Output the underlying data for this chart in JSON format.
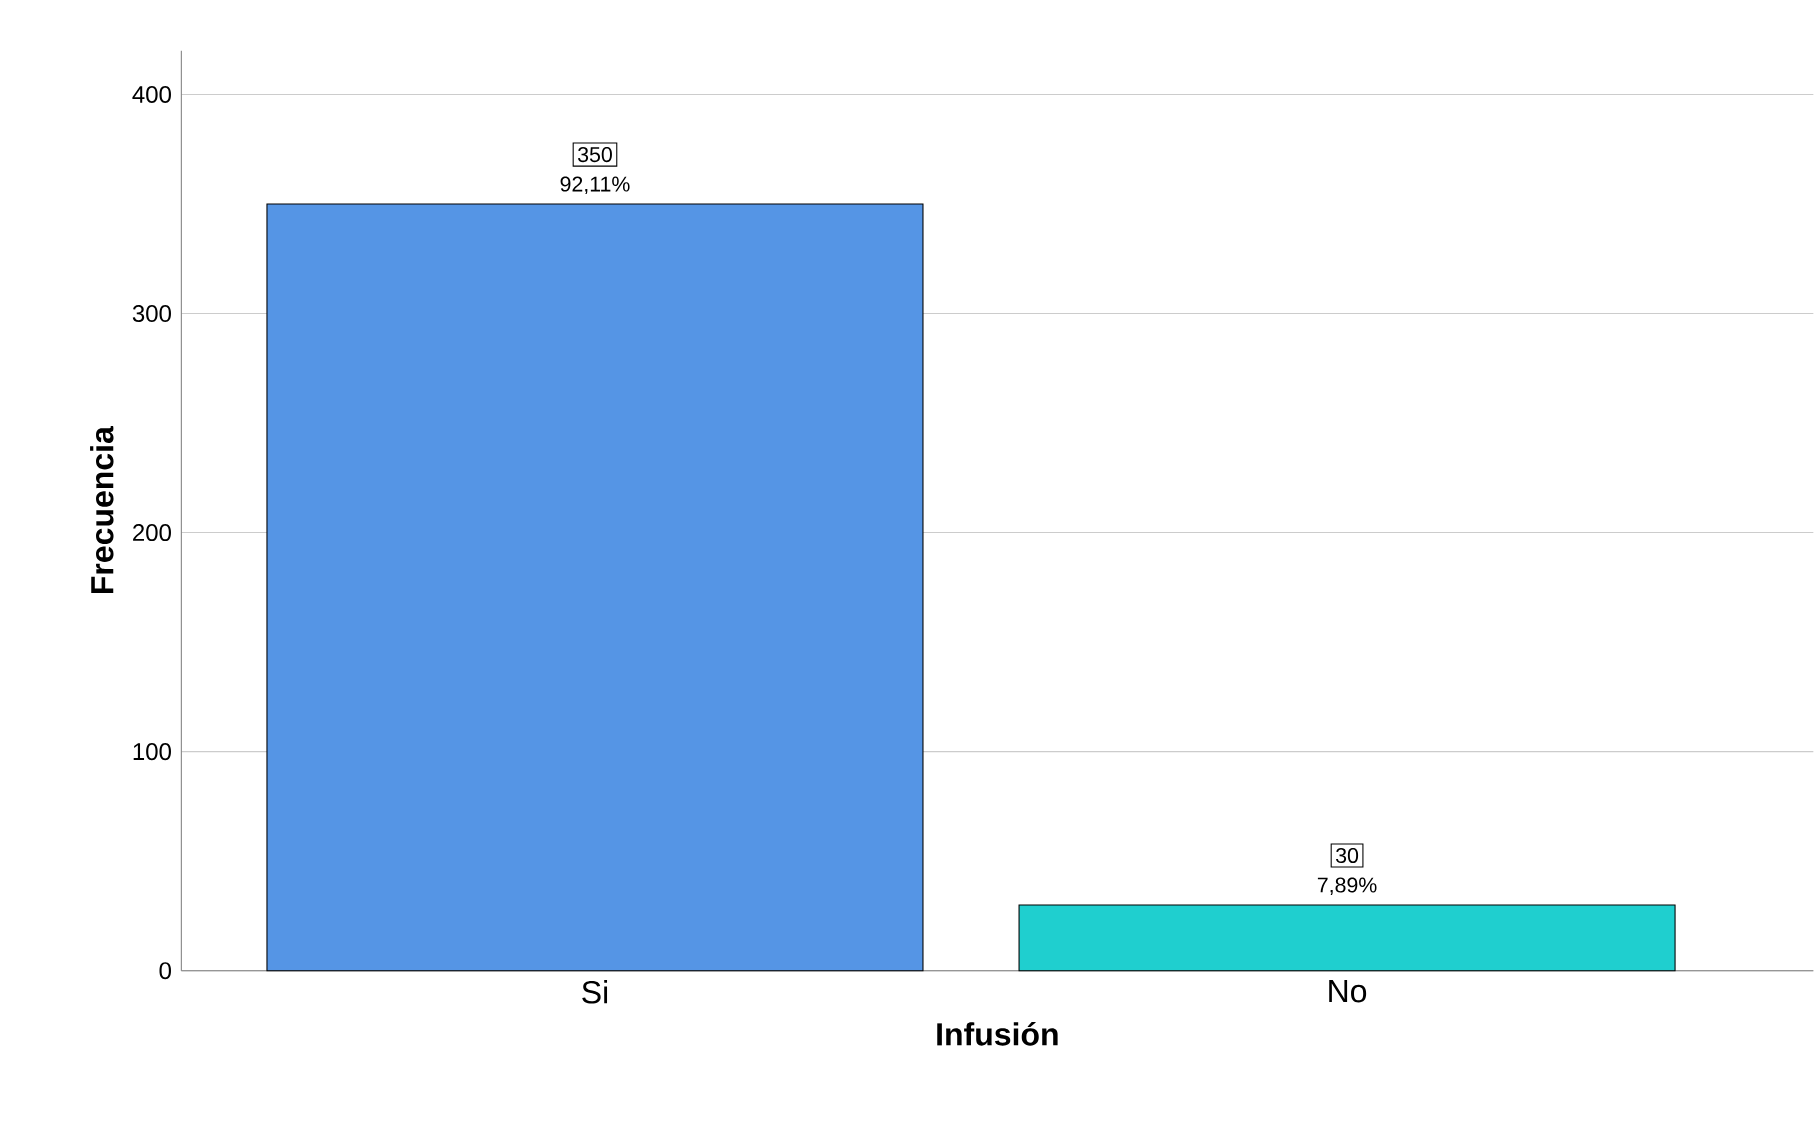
{
  "chart_data": {
    "type": "bar",
    "xlabel": "Infusión",
    "ylabel": "Frecuencia",
    "categories": [
      "Si",
      "No"
    ],
    "values": [
      350,
      30
    ],
    "colors": [
      "#5595e5",
      "#1fcfcf"
    ],
    "ylim": [
      0,
      420
    ],
    "yticks": [
      0,
      100,
      200,
      300,
      400
    ],
    "grid": "y",
    "data_labels": true,
    "annotations": [
      {
        "text": "92,11%",
        "x": "Si",
        "y": 350
      },
      {
        "text": "7,89%",
        "x": "No",
        "y": 30
      }
    ]
  }
}
